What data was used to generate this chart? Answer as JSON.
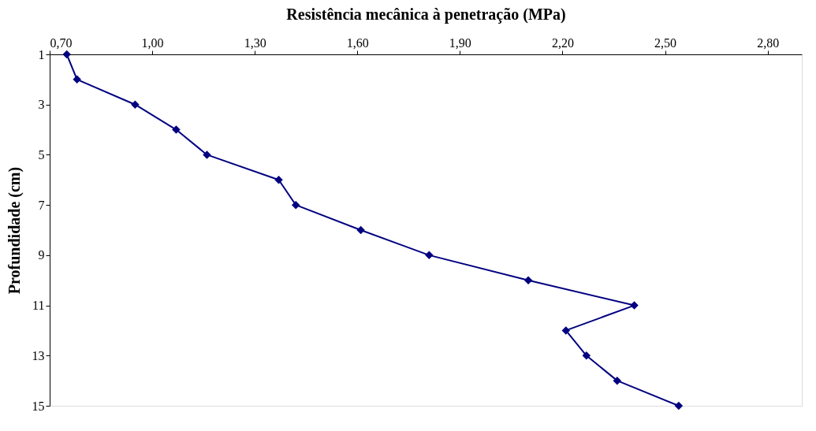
{
  "chart_data": {
    "type": "line",
    "xlabel": "Resistência mecânica à penetração (MPa)",
    "ylabel": "Profundidade (cm)",
    "series": [
      {
        "color": "#000080",
        "x": [
          0.75,
          0.78,
          0.95,
          1.07,
          1.16,
          1.37,
          1.42,
          1.61,
          1.81,
          2.1,
          2.41,
          2.21,
          2.27,
          2.36,
          2.54
        ],
        "values": [
          1,
          2,
          3,
          4,
          5,
          6,
          7,
          8,
          9,
          10,
          11,
          12,
          13,
          14,
          15
        ]
      }
    ],
    "xlim": [
      0.7,
      2.9
    ],
    "xticks": [
      {
        "value": 0.7,
        "label": "0,70"
      },
      {
        "value": 1.0,
        "label": "1,00"
      },
      {
        "value": 1.3,
        "label": "1,30"
      },
      {
        "value": 1.6,
        "label": "1,60"
      },
      {
        "value": 1.9,
        "label": "1,90"
      },
      {
        "value": 2.2,
        "label": "2,20"
      },
      {
        "value": 2.5,
        "label": "2,50"
      },
      {
        "value": 2.8,
        "label": "2,80"
      }
    ],
    "ylim": [
      15,
      1
    ],
    "yticks": [
      1,
      3,
      5,
      7,
      9,
      11,
      13,
      15
    ],
    "marker": "diamond",
    "line_style": "solid",
    "grid": false
  }
}
